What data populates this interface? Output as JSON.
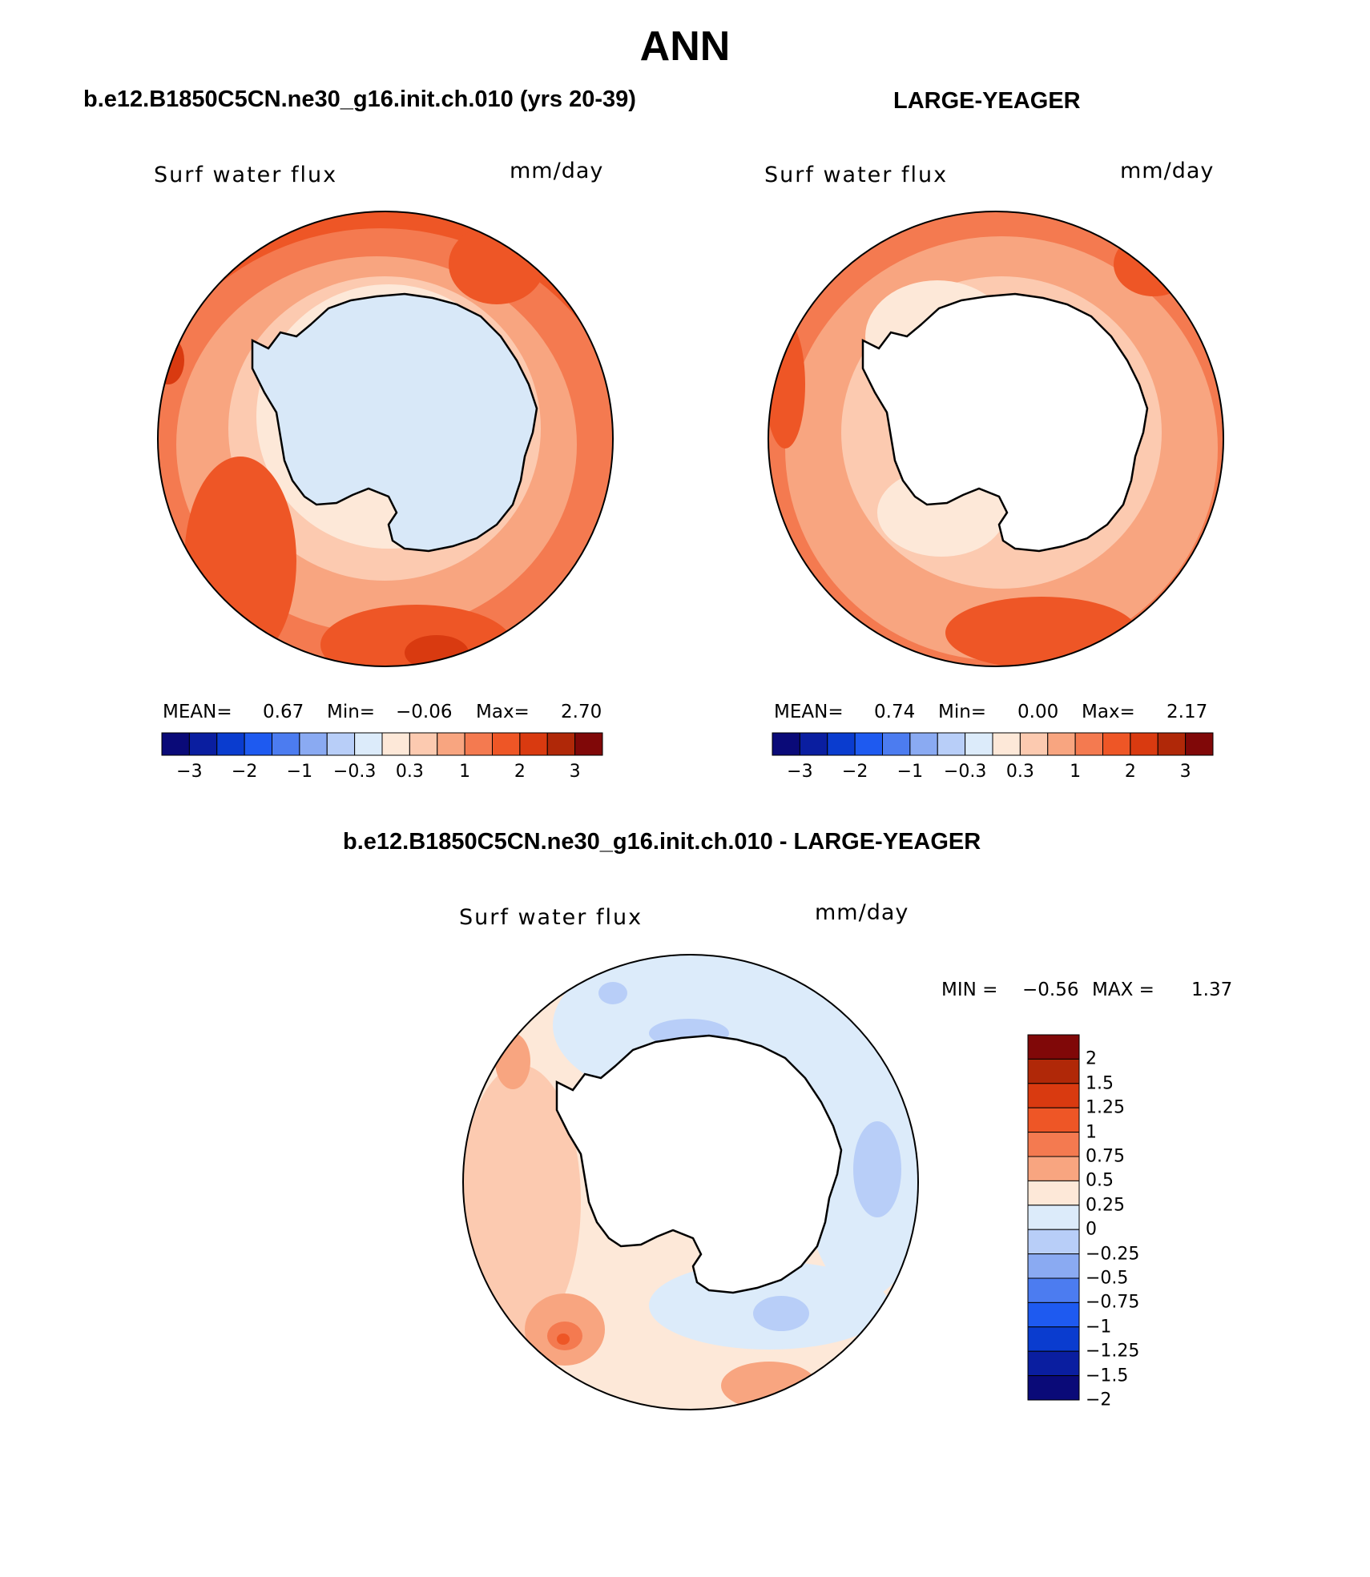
{
  "title": "ANN",
  "panels": [
    {
      "id": "model",
      "title": "b.e12.B1850C5CN.ne30_g16.init.ch.010 (yrs 20-39)",
      "variable": "Surf water flux",
      "units": "mm/day",
      "stats": {
        "mean_label": "MEAN=",
        "mean": "0.67",
        "min_label": "Min=",
        "min": "−0.06",
        "max_label": "Max=",
        "max": "2.70"
      },
      "land_fill": "#d8e8f8"
    },
    {
      "id": "obs",
      "title": "LARGE-YEAGER",
      "variable": "Surf water flux",
      "units": "mm/day",
      "stats": {
        "mean_label": "MEAN=",
        "mean": "0.74",
        "min_label": "Min=",
        "min": "0.00",
        "max_label": "Max=",
        "max": "2.17"
      },
      "land_fill": "#ffffff"
    }
  ],
  "colorbar_top": {
    "colors": [
      "#0a0a78",
      "#0a1ea0",
      "#0a3ccf",
      "#1e5af0",
      "#4c7cf0",
      "#8aaaf2",
      "#b8cef8",
      "#dcebfa",
      "#fde8d8",
      "#fccab0",
      "#f8a580",
      "#f47a50",
      "#ee5626",
      "#d93a10",
      "#b02808",
      "#800808"
    ],
    "tick_labels": [
      "−3",
      "−2",
      "−1",
      "−0.3",
      "0.3",
      "1",
      "2",
      "3"
    ]
  },
  "diff_panel": {
    "title": "b.e12.B1850C5CN.ne30_g16.init.ch.010 - LARGE-YEAGER",
    "variable": "Surf water flux",
    "units": "mm/day",
    "min_label": "MIN =",
    "min": "−0.56",
    "max_label": "MAX =",
    "max": "1.37",
    "colorbar": {
      "colors": [
        "#800808",
        "#b02808",
        "#d93a10",
        "#ee5626",
        "#f47a50",
        "#f8a580",
        "#fde8d8",
        "#dcebfa",
        "#b8cef8",
        "#8aaaf2",
        "#4c7cf0",
        "#1e5af0",
        "#0a3ccf",
        "#0a1ea0",
        "#0a0a78"
      ],
      "tick_labels": [
        "2",
        "1.5",
        "1.25",
        "1",
        "0.75",
        "0.5",
        "0.25",
        "0",
        "−0.25",
        "−0.5",
        "−0.75",
        "−1",
        "−1.25",
        "−1.5",
        "−2"
      ]
    }
  }
}
